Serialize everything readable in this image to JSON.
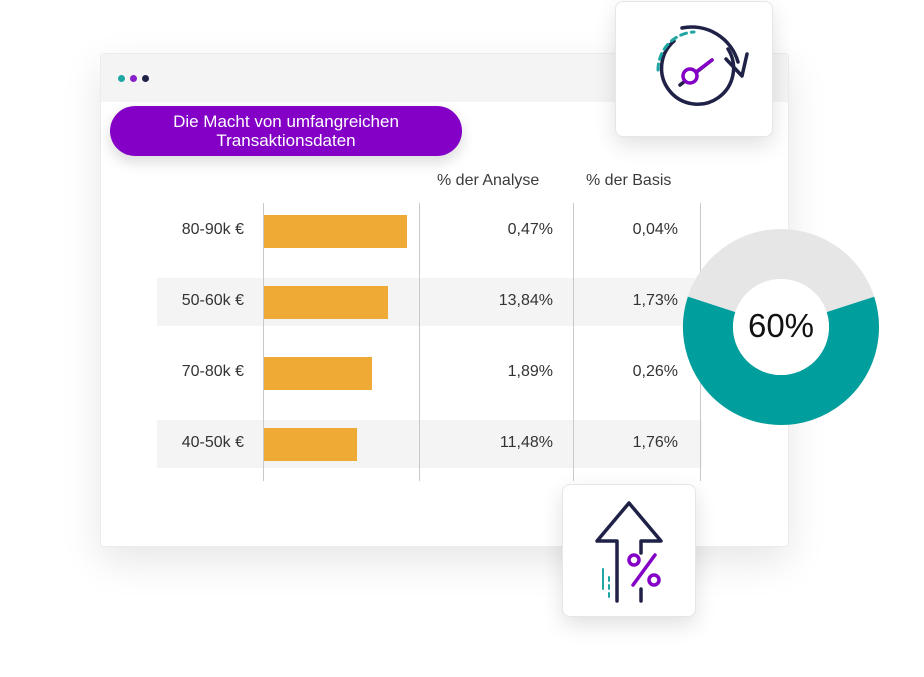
{
  "title": {
    "line1": "Die Macht von umfangreichen",
    "line2": "Transaktionsdaten"
  },
  "columns": {
    "analyse": "% der Analyse",
    "basis": "% der Basis"
  },
  "rows": [
    {
      "label": "80-90k €",
      "bar_fraction": 0.98,
      "analyse": "0,47%",
      "basis": "0,04%"
    },
    {
      "label": "50-60k €",
      "bar_fraction": 0.85,
      "analyse": "13,84%",
      "basis": "1,73%"
    },
    {
      "label": "70-80k €",
      "bar_fraction": 0.74,
      "analyse": "1,89%",
      "basis": "0,26%"
    },
    {
      "label": "40-50k €",
      "bar_fraction": 0.64,
      "analyse": "11,48%",
      "basis": "1,76%"
    }
  ],
  "donut": {
    "label": "60%",
    "value": 60,
    "fill_color": "#009e9c",
    "track_color": "#e6e6e6"
  },
  "icons": {
    "gauge": "speedometer-refresh-icon",
    "arrow": "percent-up-arrow-icon"
  },
  "colors": {
    "accent": "#8400c6",
    "bar": "#eeaa35",
    "teal": "#009e9c",
    "navy": "#1f2147"
  }
}
